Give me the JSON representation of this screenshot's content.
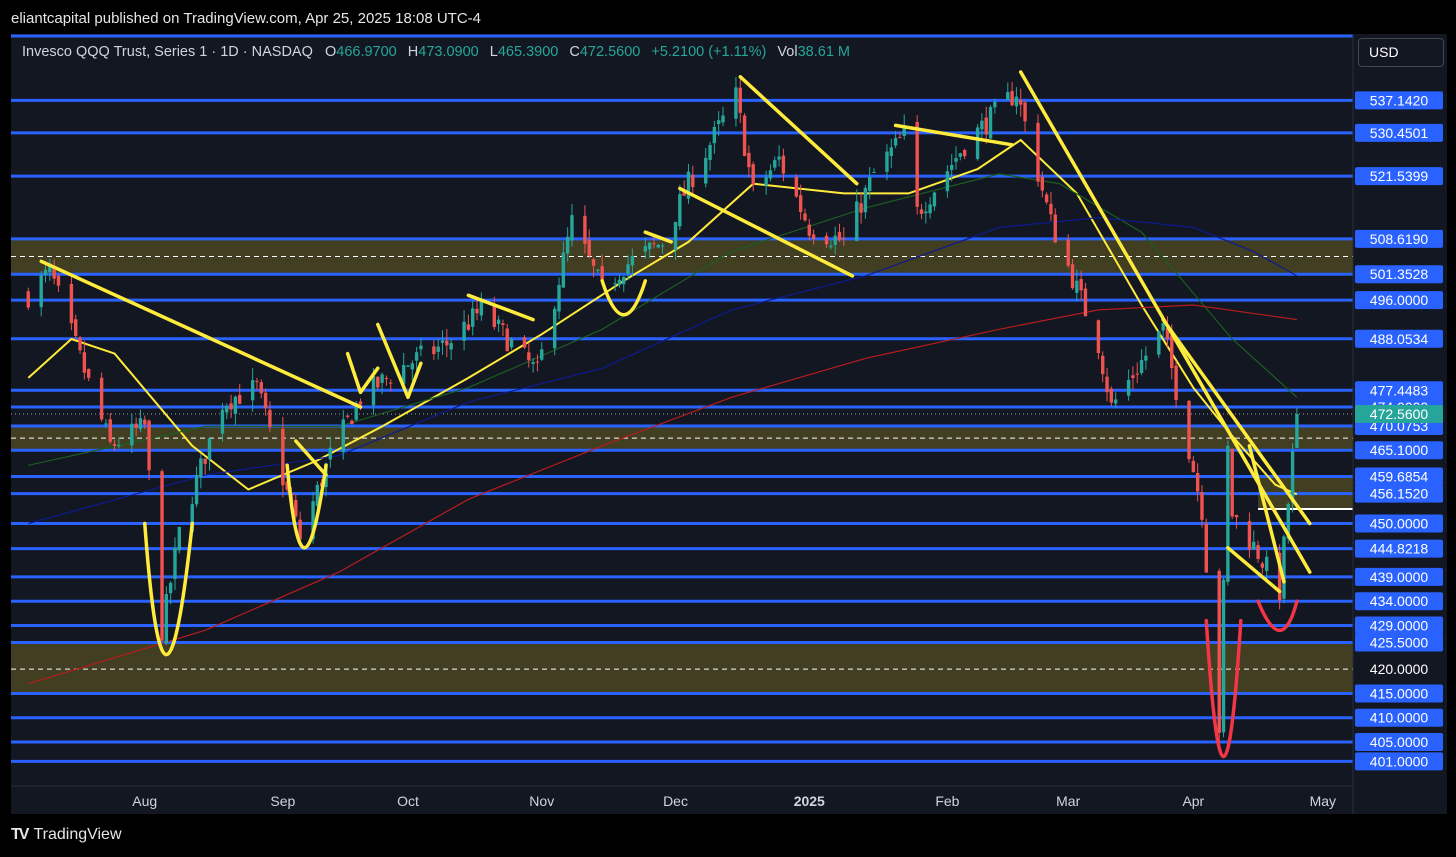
{
  "publish_bar": "eliantcapital published on TradingView.com, Apr 25, 2025 18:08 UTC-4",
  "legend": {
    "title": "Invesco QQQ Trust, Series 1 · 1D · NASDAQ",
    "open_label": "O",
    "open": "466.9700",
    "high_label": "H",
    "high": "473.0900",
    "low_label": "L",
    "low": "465.3900",
    "close_label": "C",
    "close": "472.5600",
    "change": "+5.2100 (+1.11%)",
    "vol_label": "Vol",
    "vol": "38.61 M"
  },
  "currency": "USD",
  "footer": {
    "brand": "TradingView"
  },
  "colors": {
    "background": "#131722",
    "up": "#26a69a",
    "down": "#ef5350",
    "level_line": "#2962ff",
    "zone_fill": "#4a4521",
    "annotation": "#ffeb3b",
    "annotation_red": "#f23645",
    "ma_fast": "#ffeb3b",
    "ma_mid": "#1b5e20",
    "ma_slow": "#0d1b8f",
    "ma_long": "#b71c1c"
  },
  "chart_data": {
    "type": "candlestick",
    "symbol": "QQQ",
    "timeframe": "1D",
    "ylim": [
      398,
      550
    ],
    "x_ticks": [
      {
        "label": "Aug",
        "date": "2024-08-01"
      },
      {
        "label": "Sep",
        "date": "2024-09-02"
      },
      {
        "label": "Oct",
        "date": "2024-10-01"
      },
      {
        "label": "Nov",
        "date": "2024-11-01"
      },
      {
        "label": "Dec",
        "date": "2024-12-02"
      },
      {
        "label": "2025",
        "date": "2025-01-02",
        "bold": true
      },
      {
        "label": "Feb",
        "date": "2025-02-03"
      },
      {
        "label": "Mar",
        "date": "2025-03-03"
      },
      {
        "label": "Apr",
        "date": "2025-04-01"
      },
      {
        "label": "May",
        "date": "2025-05-01"
      }
    ],
    "price_levels": [
      {
        "label": "537.1420",
        "value": 537.142,
        "badge": true
      },
      {
        "label": "530.4501",
        "value": 530.4501,
        "badge": true
      },
      {
        "label": "521.5399",
        "value": 521.5399,
        "badge": true
      },
      {
        "label": "508.6190",
        "value": 508.619,
        "badge": true
      },
      {
        "label": "501.3528",
        "value": 501.3528,
        "badge": true
      },
      {
        "label": "496.0000",
        "value": 496.0,
        "badge": true
      },
      {
        "label": "488.0534",
        "value": 488.0534,
        "badge": true
      },
      {
        "label": "477.4483",
        "value": 477.4483,
        "badge": true
      },
      {
        "label": "474.0000",
        "value": 474.0,
        "badge": true
      },
      {
        "label": "470.0753",
        "value": 470.0753,
        "badge": true
      },
      {
        "label": "465.1000",
        "value": 465.1,
        "badge": true
      },
      {
        "label": "459.6854",
        "value": 459.6854,
        "badge": true
      },
      {
        "label": "456.1520",
        "value": 456.152,
        "badge": true
      },
      {
        "label": "450.0000",
        "value": 450.0,
        "badge": true
      },
      {
        "label": "444.8218",
        "value": 444.8218,
        "badge": true
      },
      {
        "label": "439.0000",
        "value": 439.0,
        "badge": true
      },
      {
        "label": "434.0000",
        "value": 434.0,
        "badge": true
      },
      {
        "label": "429.0000",
        "value": 429.0,
        "badge": true
      },
      {
        "label": "425.5000",
        "value": 425.5,
        "badge": true
      },
      {
        "label": "420.0000",
        "value": 420.0,
        "badge": false
      },
      {
        "label": "415.0000",
        "value": 415.0,
        "badge": true
      },
      {
        "label": "410.0000",
        "value": 410.0,
        "badge": true
      },
      {
        "label": "405.0000",
        "value": 405.0,
        "badge": true
      },
      {
        "label": "401.0000",
        "value": 401.0,
        "badge": true
      }
    ],
    "current_price": {
      "label": "472.5600",
      "value": 472.56
    },
    "zones": [
      {
        "top": 508.619,
        "bottom": 501.3528,
        "mid": 505.0
      },
      {
        "top": 470.0753,
        "bottom": 465.1,
        "mid": 467.6
      },
      {
        "top": 459.6854,
        "bottom": 453.0,
        "mid": 456.2,
        "start_date": "2025-04-16"
      },
      {
        "top": 425.5,
        "bottom": 415.0,
        "mid": 420.0
      }
    ],
    "price_path": [
      [
        "2024-07-05",
        497
      ],
      [
        "2024-07-10",
        502
      ],
      [
        "2024-07-17",
        484
      ],
      [
        "2024-07-24",
        466
      ],
      [
        "2024-08-01",
        470
      ],
      [
        "2024-08-05",
        428
      ],
      [
        "2024-08-09",
        448
      ],
      [
        "2024-08-19",
        475
      ],
      [
        "2024-08-27",
        478
      ],
      [
        "2024-09-06",
        447
      ],
      [
        "2024-09-13",
        464
      ],
      [
        "2024-09-20",
        476
      ],
      [
        "2024-10-01",
        483
      ],
      [
        "2024-10-10",
        487
      ],
      [
        "2024-10-18",
        494
      ],
      [
        "2024-10-31",
        481
      ],
      [
        "2024-11-08",
        512
      ],
      [
        "2024-11-15",
        498
      ],
      [
        "2024-11-20",
        503
      ],
      [
        "2024-11-29",
        508
      ],
      [
        "2024-12-05",
        520
      ],
      [
        "2024-12-16",
        538
      ],
      [
        "2024-12-20",
        518
      ],
      [
        "2024-12-26",
        525
      ],
      [
        "2025-01-02",
        511
      ],
      [
        "2025-01-10",
        508
      ],
      [
        "2025-01-17",
        522
      ],
      [
        "2025-01-24",
        530
      ],
      [
        "2025-01-27",
        514
      ],
      [
        "2025-02-07",
        528
      ],
      [
        "2025-02-19",
        539
      ],
      [
        "2025-02-27",
        512
      ],
      [
        "2025-03-10",
        487
      ],
      [
        "2025-03-13",
        474
      ],
      [
        "2025-03-25",
        490
      ],
      [
        "2025-04-03",
        453
      ],
      [
        "2025-04-07",
        408
      ],
      [
        "2025-04-09",
        465
      ],
      [
        "2025-04-10",
        452
      ],
      [
        "2025-04-16",
        444
      ],
      [
        "2025-04-21",
        436
      ],
      [
        "2025-04-25",
        472.56
      ]
    ],
    "moving_averages": [
      {
        "color_key": "ma_fast",
        "points": [
          [
            "2024-07-05",
            480
          ],
          [
            "2024-07-15",
            488
          ],
          [
            "2024-07-25",
            485
          ],
          [
            "2024-08-12",
            466
          ],
          [
            "2024-08-25",
            457
          ],
          [
            "2024-09-10",
            463
          ],
          [
            "2024-09-25",
            470
          ],
          [
            "2024-10-15",
            480
          ],
          [
            "2024-11-01",
            489
          ],
          [
            "2024-11-20",
            500
          ],
          [
            "2024-12-05",
            508
          ],
          [
            "2024-12-20",
            520
          ],
          [
            "2025-01-10",
            518
          ],
          [
            "2025-01-25",
            518
          ],
          [
            "2025-02-10",
            523
          ],
          [
            "2025-02-20",
            529
          ],
          [
            "2025-03-05",
            518
          ],
          [
            "2025-03-20",
            495
          ],
          [
            "2025-04-01",
            478
          ],
          [
            "2025-04-10",
            468
          ],
          [
            "2025-04-20",
            458
          ],
          [
            "2025-04-25",
            456
          ]
        ]
      },
      {
        "color_key": "ma_mid",
        "points": [
          [
            "2024-07-05",
            462
          ],
          [
            "2024-08-15",
            470
          ],
          [
            "2024-09-15",
            470
          ],
          [
            "2024-10-15",
            478
          ],
          [
            "2024-11-15",
            490
          ],
          [
            "2024-12-15",
            506
          ],
          [
            "2025-01-15",
            515
          ],
          [
            "2025-02-15",
            522
          ],
          [
            "2025-03-01",
            520
          ],
          [
            "2025-03-20",
            510
          ],
          [
            "2025-04-10",
            488
          ],
          [
            "2025-04-25",
            476
          ]
        ]
      },
      {
        "color_key": "ma_slow",
        "points": [
          [
            "2024-07-05",
            450
          ],
          [
            "2024-08-15",
            460
          ],
          [
            "2024-09-15",
            464
          ],
          [
            "2024-10-15",
            475
          ],
          [
            "2024-11-15",
            482
          ],
          [
            "2024-12-15",
            494
          ],
          [
            "2025-01-15",
            501
          ],
          [
            "2025-02-15",
            511
          ],
          [
            "2025-03-10",
            513
          ],
          [
            "2025-04-01",
            511
          ],
          [
            "2025-04-15",
            506
          ],
          [
            "2025-04-25",
            501
          ]
        ]
      },
      {
        "color_key": "ma_long",
        "points": [
          [
            "2024-07-05",
            417
          ],
          [
            "2024-08-15",
            428
          ],
          [
            "2024-09-15",
            440
          ],
          [
            "2024-10-15",
            455
          ],
          [
            "2024-11-15",
            466
          ],
          [
            "2024-12-15",
            476
          ],
          [
            "2025-01-15",
            484
          ],
          [
            "2025-02-15",
            490
          ],
          [
            "2025-03-10",
            494
          ],
          [
            "2025-04-01",
            495
          ],
          [
            "2025-04-25",
            492
          ]
        ]
      }
    ],
    "annotations": [
      {
        "color_key": "annotation",
        "kind": "line",
        "points": [
          [
            "2024-07-08",
            504
          ],
          [
            "2024-09-20",
            474
          ]
        ]
      },
      {
        "color_key": "annotation",
        "kind": "curve",
        "points": [
          [
            "2024-08-01",
            450
          ],
          [
            "2024-08-06",
            423
          ],
          [
            "2024-08-12",
            450
          ]
        ]
      },
      {
        "color_key": "annotation",
        "kind": "curve",
        "points": [
          [
            "2024-09-03",
            462
          ],
          [
            "2024-09-07",
            445
          ],
          [
            "2024-09-12",
            462
          ]
        ]
      },
      {
        "color_key": "annotation",
        "kind": "line",
        "points": [
          [
            "2024-09-05",
            467
          ],
          [
            "2024-09-12",
            460
          ]
        ]
      },
      {
        "color_key": "annotation",
        "kind": "polyline",
        "points": [
          [
            "2024-09-17",
            485
          ],
          [
            "2024-09-20",
            477
          ],
          [
            "2024-09-24",
            482
          ]
        ]
      },
      {
        "color_key": "annotation",
        "kind": "polyline",
        "points": [
          [
            "2024-09-24",
            491
          ],
          [
            "2024-10-01",
            476
          ],
          [
            "2024-10-04",
            483
          ]
        ]
      },
      {
        "color_key": "annotation",
        "kind": "line",
        "points": [
          [
            "2024-10-15",
            497
          ],
          [
            "2024-10-30",
            492
          ]
        ]
      },
      {
        "color_key": "annotation",
        "kind": "curve",
        "points": [
          [
            "2024-11-15",
            500
          ],
          [
            "2024-11-20",
            493
          ],
          [
            "2024-11-25",
            500
          ]
        ]
      },
      {
        "color_key": "annotation",
        "kind": "line",
        "points": [
          [
            "2024-11-25",
            510
          ],
          [
            "2024-12-01",
            508
          ]
        ]
      },
      {
        "color_key": "annotation",
        "kind": "line",
        "points": [
          [
            "2024-12-17",
            542
          ],
          [
            "2025-01-13",
            520
          ]
        ]
      },
      {
        "color_key": "annotation",
        "kind": "line",
        "points": [
          [
            "2024-12-03",
            519
          ],
          [
            "2025-01-12",
            501
          ]
        ]
      },
      {
        "color_key": "annotation",
        "kind": "line",
        "points": [
          [
            "2025-01-22",
            532
          ],
          [
            "2025-02-18",
            528
          ]
        ]
      },
      {
        "color_key": "annotation",
        "kind": "line",
        "points": [
          [
            "2025-02-20",
            543
          ],
          [
            "2025-04-28",
            440
          ]
        ]
      },
      {
        "color_key": "annotation",
        "kind": "line",
        "points": [
          [
            "2025-03-25",
            492
          ],
          [
            "2025-04-28",
            450
          ]
        ]
      },
      {
        "color_key": "annotation",
        "kind": "line",
        "points": [
          [
            "2025-04-09",
            445
          ],
          [
            "2025-04-21",
            436
          ]
        ]
      },
      {
        "color_key": "annotation",
        "kind": "line",
        "points": [
          [
            "2025-04-14",
            466
          ],
          [
            "2025-04-22",
            438
          ]
        ]
      },
      {
        "color_key": "annotation_red",
        "kind": "curve",
        "points": [
          [
            "2025-04-04",
            430
          ],
          [
            "2025-04-08",
            402
          ],
          [
            "2025-04-12",
            430
          ]
        ]
      },
      {
        "color_key": "annotation_red",
        "kind": "curve",
        "points": [
          [
            "2025-04-16",
            434
          ],
          [
            "2025-04-21",
            428
          ],
          [
            "2025-04-25",
            434
          ]
        ]
      }
    ]
  }
}
